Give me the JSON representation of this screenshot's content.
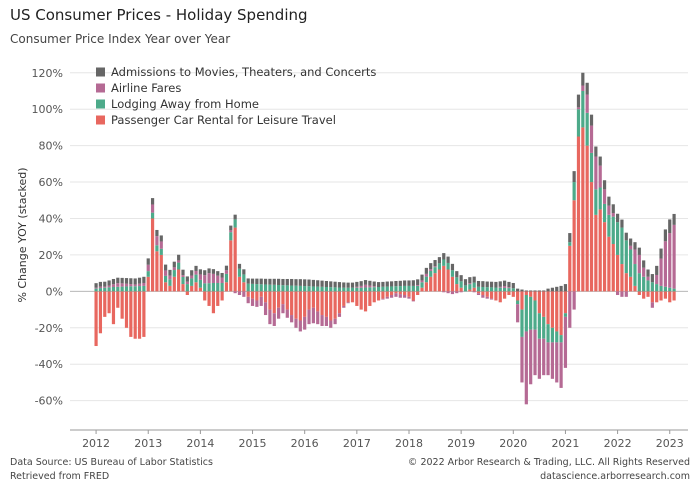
{
  "title": "US Consumer Prices - Holiday Spending",
  "subtitle": "Consumer Price Index Year over Year",
  "footer": {
    "source_line1": "Data Source: US Bureau of Labor Statistics",
    "source_line2": "Retrieved from FRED",
    "copyright": "© 2022 Arbor Research & Trading, LLC. All Rights Reserved",
    "website": "datascience.arborresearch.com"
  },
  "chart_data": {
    "type": "bar",
    "stacked": true,
    "ylabel": "% Change YOY (stacked)",
    "ylim": [
      -75,
      127
    ],
    "yticks": [
      -60,
      -40,
      -20,
      0,
      20,
      40,
      60,
      80,
      100,
      120
    ],
    "ytick_labels": [
      "-60%",
      "-40%",
      "-20%",
      "0%",
      "20%",
      "40%",
      "60%",
      "80%",
      "100%",
      "120%"
    ],
    "xticks": [
      2012,
      2013,
      2014,
      2015,
      2016,
      2017,
      2018,
      2019,
      2020,
      2021,
      2022,
      2023
    ],
    "xtick_labels": [
      "2012",
      "2013",
      "2014",
      "2015",
      "2016",
      "2017",
      "2018",
      "2019",
      "2020",
      "2021",
      "2022",
      "2023"
    ],
    "x_start": "2012-01",
    "grid": true,
    "legend_position": "top-left",
    "series": [
      {
        "name": "Admissions to Movies, Theaters, and Concerts",
        "color": "#666666",
        "values": [
          2.5,
          2.6,
          2.7,
          2.8,
          2.9,
          3.0,
          3.0,
          3.1,
          3.2,
          3.3,
          3.3,
          3.4,
          3.5,
          3.5,
          3.4,
          3.3,
          3.2,
          3.2,
          3.1,
          3.1,
          3.0,
          2.9,
          2.9,
          2.8,
          2.8,
          2.7,
          2.6,
          2.6,
          2.5,
          2.5,
          2.5,
          2.6,
          2.6,
          2.7,
          2.8,
          2.9,
          2.9,
          3.0,
          3.1,
          3.1,
          3.2,
          3.3,
          3.4,
          3.4,
          3.5,
          3.6,
          3.6,
          3.7,
          3.7,
          3.7,
          3.6,
          3.5,
          3.4,
          3.3,
          3.2,
          3.1,
          3.0,
          2.9,
          2.8,
          2.8,
          2.7,
          2.6,
          2.6,
          2.6,
          2.6,
          2.7,
          2.7,
          2.8,
          2.8,
          2.9,
          2.9,
          3.0,
          3.0,
          3.1,
          3.1,
          3.2,
          3.3,
          3.3,
          3.4,
          3.4,
          3.5,
          3.5,
          3.5,
          3.4,
          3.4,
          3.4,
          3.3,
          3.3,
          3.2,
          3.2,
          3.1,
          3.1,
          3.1,
          3.0,
          3.0,
          2.9,
          2.9,
          1.5,
          1.0,
          0.5,
          0.5,
          0.5,
          0.5,
          0.5,
          1.5,
          2.0,
          2.5,
          3.0,
          4.0,
          5.0,
          6.0,
          7.0,
          7.0,
          6.5,
          6.0,
          5.5,
          5.0,
          5.0,
          5.0,
          4.8,
          4.6,
          4.4,
          4.2,
          4.0,
          4.0,
          4.0,
          4.0,
          4.0,
          4.5,
          5.0,
          5.5,
          6.5,
          7.5,
          6.0
        ]
      },
      {
        "name": "Airline Fares",
        "color": "#B56A94",
        "values": [
          0.5,
          0.8,
          0.6,
          1.0,
          1.5,
          2.0,
          1.8,
          1.5,
          1.2,
          1.0,
          1.3,
          1.6,
          3.5,
          4.5,
          5.0,
          4.0,
          3.0,
          2.0,
          1.5,
          1.2,
          1.0,
          1.3,
          1.6,
          2.0,
          3.0,
          4.5,
          5.5,
          5.0,
          4.0,
          3.0,
          2.0,
          1.0,
          -1.0,
          -2.0,
          -3.0,
          -3.5,
          -4.0,
          -3.5,
          -5.0,
          -7.0,
          -8.0,
          -7.0,
          -6.0,
          -5.0,
          -4.5,
          -4.0,
          -5.0,
          -6.0,
          -7.0,
          -8.0,
          -8.5,
          -7.0,
          -6.0,
          -5.0,
          -4.0,
          -3.0,
          -2.0,
          -1.0,
          -0.5,
          0.0,
          0.5,
          1.0,
          1.5,
          1.0,
          0.5,
          0.0,
          -0.5,
          -1.0,
          -1.5,
          -2.0,
          -2.0,
          -1.5,
          -1.0,
          -0.5,
          0.5,
          1.0,
          1.5,
          1.0,
          0.5,
          0.0,
          -0.5,
          -1.0,
          -1.5,
          -1.0,
          -0.5,
          0.0,
          0.5,
          -0.5,
          -1.0,
          -1.5,
          -1.0,
          -0.5,
          0.0,
          0.5,
          1.0,
          0.5,
          0.0,
          -10.0,
          -25.0,
          -40.0,
          -30.0,
          -25.0,
          -22.0,
          -20.0,
          -18.0,
          -20.0,
          -22.0,
          -25.0,
          -28.0,
          -20.0,
          -10.0,
          1.0,
          3.0,
          10.0,
          15.0,
          18.0,
          12.0,
          8.0,
          5.0,
          2.0,
          -2.0,
          -3.0,
          -3.0,
          2.0,
          8.0,
          10.0,
          5.0,
          2.0,
          -3.0,
          5.0,
          15.0,
          25.0,
          30.0,
          35.0,
          30.0,
          20.0
        ]
      },
      {
        "name": "Lodging Away from Home",
        "color": "#4DAA8A",
        "values": [
          1.5,
          1.8,
          2.0,
          2.2,
          2.4,
          2.5,
          2.6,
          2.7,
          2.8,
          2.8,
          2.9,
          3.0,
          3.1,
          3.2,
          3.3,
          3.4,
          3.5,
          3.6,
          3.7,
          3.8,
          3.9,
          4.0,
          4.1,
          4.2,
          4.3,
          4.4,
          4.5,
          4.6,
          4.6,
          4.6,
          4.6,
          4.5,
          4.5,
          4.4,
          4.3,
          4.2,
          4.1,
          4.0,
          3.9,
          3.8,
          3.7,
          3.6,
          3.5,
          3.4,
          3.3,
          3.2,
          3.1,
          3.0,
          2.9,
          2.8,
          2.7,
          2.6,
          2.5,
          2.4,
          2.3,
          2.2,
          2.1,
          2.0,
          2.0,
          2.0,
          2.0,
          2.0,
          2.1,
          2.2,
          2.3,
          2.4,
          2.5,
          2.6,
          2.7,
          2.8,
          2.9,
          3.0,
          3.0,
          3.0,
          3.0,
          3.0,
          3.1,
          3.2,
          3.3,
          3.4,
          3.5,
          3.6,
          3.6,
          3.7,
          3.5,
          3.3,
          3.0,
          2.8,
          2.5,
          2.4,
          2.3,
          2.2,
          2.1,
          2.0,
          1.9,
          1.8,
          1.7,
          -2.0,
          -15.0,
          -20.0,
          -18.0,
          -16.0,
          -14.0,
          -12.0,
          -10.0,
          -8.0,
          -6.0,
          -4.0,
          -2.0,
          2.0,
          10.0,
          15.0,
          20.0,
          18.0,
          16.0,
          14.0,
          12.0,
          10.0,
          12.0,
          15.0,
          18.0,
          20.0,
          18.0,
          15.0,
          12.0,
          10.0,
          8.0,
          6.0,
          5.0,
          4.0,
          3.0,
          2.5,
          2.0,
          1.5,
          1.5
        ]
      },
      {
        "name": "Passenger Car Rental for Leisure Travel",
        "color": "#E8675F",
        "values": [
          -30.0,
          -23.0,
          -14.0,
          -12.0,
          -18.0,
          -9.0,
          -15.0,
          -20.0,
          -25.0,
          -26.0,
          -26.0,
          -25.0,
          8.0,
          40.0,
          22.0,
          20.0,
          5.0,
          3.0,
          8.0,
          12.0,
          4.0,
          -2.0,
          3.0,
          5.0,
          2.0,
          -5.0,
          -8.0,
          -12.0,
          -8.0,
          -5.0,
          5.0,
          28.0,
          35.0,
          8.0,
          5.0,
          -3.0,
          -4.0,
          -5.0,
          -3.0,
          -6.0,
          -10.0,
          -12.0,
          -9.0,
          -7.0,
          -10.0,
          -13.0,
          -15.0,
          -16.0,
          -14.0,
          -10.0,
          -9.0,
          -11.0,
          -13.0,
          -14.0,
          -16.0,
          -15.0,
          -12.0,
          -8.0,
          -6.0,
          -6.0,
          -8.0,
          -10.0,
          -11.0,
          -8.0,
          -6.0,
          -5.0,
          -4.0,
          -3.0,
          -2.0,
          -1.0,
          -1.5,
          -2.0,
          -3.0,
          -5.0,
          -2.0,
          2.0,
          5.0,
          8.0,
          10.0,
          12.0,
          14.0,
          12.0,
          8.0,
          4.0,
          2.0,
          0.0,
          1.0,
          2.0,
          -1.0,
          -2.0,
          -3.0,
          -4.0,
          -5.0,
          -6.0,
          -4.0,
          -2.0,
          -3.0,
          -5.0,
          -10.0,
          -2.0,
          -3.0,
          -5.0,
          -12.0,
          -14.0,
          -18.0,
          -20.0,
          -22.0,
          -24.0,
          -12.0,
          25.0,
          50.0,
          85.0,
          90.0,
          80.0,
          60.0,
          42.0,
          45.0,
          38.0,
          30.0,
          26.0,
          20.0,
          15.0,
          10.0,
          8.0,
          3.0,
          -2.0,
          -4.0,
          -3.0,
          -6.0,
          -6.0,
          -5.0,
          -4.0,
          -6.0,
          -5.0,
          -3.0,
          -2.0
        ]
      }
    ]
  }
}
